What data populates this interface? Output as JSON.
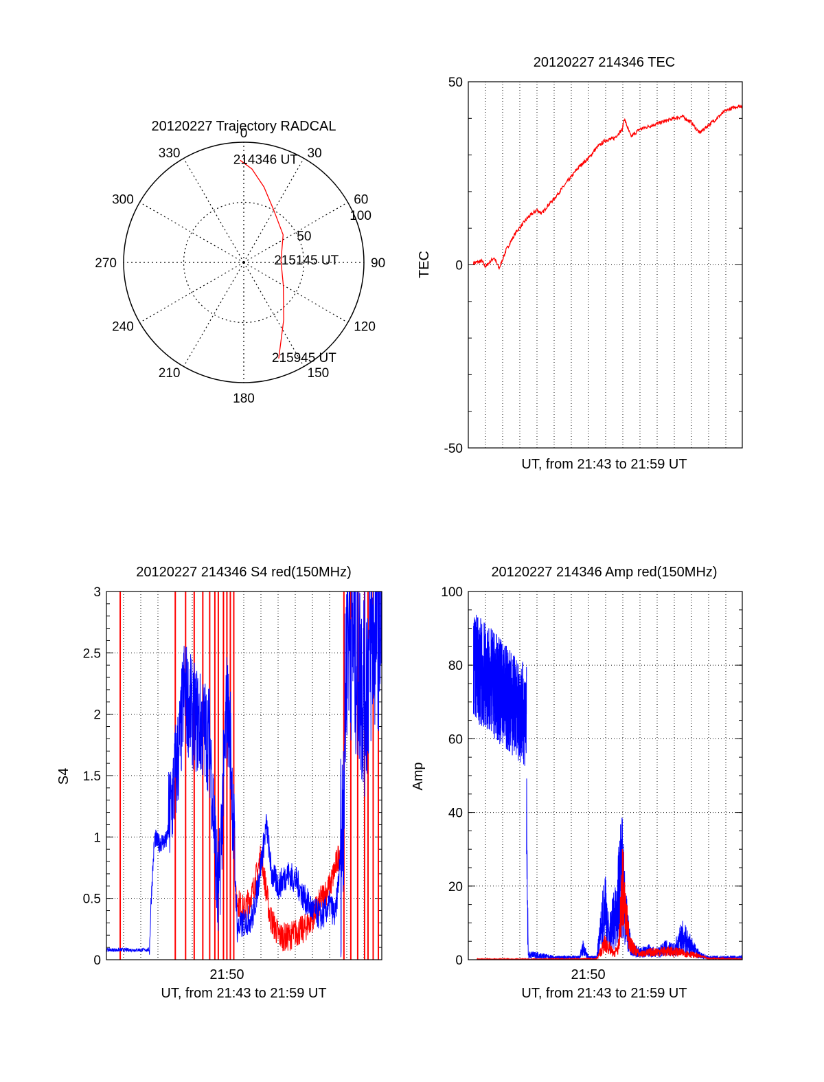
{
  "chart_data": [
    {
      "type": "polar",
      "title": "20120227 Trajectory RADCAL",
      "angle_labels": [
        "0",
        "30",
        "60",
        "90",
        "120",
        "150",
        "180",
        "210",
        "240",
        "270",
        "300",
        "330"
      ],
      "radius_labels": [
        "50",
        "100"
      ],
      "rlim": [
        0,
        100
      ],
      "direction": "clockwise-from-north",
      "grid": true,
      "series": [
        {
          "color": "#ff0000",
          "points": [
            {
              "azimuth": 358,
              "radius": 85
            },
            {
              "azimuth": 5,
              "radius": 78
            },
            {
              "azimuth": 15,
              "radius": 65
            },
            {
              "azimuth": 30,
              "radius": 50
            },
            {
              "azimuth": 55,
              "radius": 40
            },
            {
              "azimuth": 88,
              "radius": 31
            },
            {
              "azimuth": 120,
              "radius": 38
            },
            {
              "azimuth": 145,
              "radius": 58
            },
            {
              "azimuth": 160,
              "radius": 85
            }
          ]
        }
      ],
      "annotations": [
        {
          "text": "214346 UT",
          "azimuth": 358,
          "radius": 85
        },
        {
          "text": "215145 UT",
          "azimuth": 88,
          "radius": 31
        },
        {
          "text": "215945 UT",
          "azimuth": 160,
          "radius": 85
        }
      ]
    },
    {
      "type": "line",
      "title": "20120227 214346 TEC",
      "xlabel": "UT, from 21:43 to 21:59 UT",
      "ylabel": "TEC",
      "xlim": [
        0,
        16
      ],
      "ylim": [
        -50,
        50
      ],
      "yticks": [
        "50",
        "0",
        "-50"
      ],
      "grid": true,
      "series": [
        {
          "color": "#ff0000",
          "x": [
            0.3,
            0.8,
            1.0,
            1.5,
            1.8,
            2.2,
            2.8,
            3.5,
            4.0,
            4.3,
            4.6,
            5.0,
            5.5,
            6.0,
            6.5,
            7.0,
            7.5,
            8.0,
            8.5,
            9.0,
            9.1,
            9.5,
            10.0,
            11.0,
            12.0,
            12.5,
            13.0,
            13.5,
            14.0,
            14.5,
            15.0,
            15.5,
            16.0
          ],
          "y": [
            0.5,
            1.0,
            -0.5,
            2.0,
            -1.0,
            4.0,
            9.0,
            13.0,
            15.0,
            14.0,
            16.0,
            18.0,
            21.0,
            24.0,
            27.0,
            29.0,
            32.0,
            34.0,
            34.5,
            37.0,
            40.0,
            35.0,
            37.0,
            38.5,
            40.0,
            40.5,
            39.0,
            36.0,
            38.0,
            40.0,
            42.0,
            43.0,
            43.5
          ]
        }
      ]
    },
    {
      "type": "line",
      "title": "20120227 214346 S4 red(150MHz)",
      "xlabel": "UT, from 21:43 to 21:59 UT",
      "ylabel": "S4",
      "xlim": [
        0,
        16
      ],
      "xticks": [
        {
          "value": 7,
          "label": "21:50"
        }
      ],
      "ylim": [
        0,
        3
      ],
      "yticks": [
        "0",
        "0.5",
        "1",
        "1.5",
        "2",
        "2.5",
        "3"
      ],
      "grid": true,
      "red_vertical_spikes_x": [
        0.8,
        4.0,
        4.6,
        5.1,
        5.6,
        6.0,
        6.3,
        6.5,
        6.8,
        7.0,
        7.2,
        7.4,
        13.8,
        14.2,
        14.6,
        15.0,
        15.2,
        15.5,
        15.8
      ],
      "series": [
        {
          "color": "#0000ff",
          "x": [
            0.0,
            1.0,
            2.0,
            2.5,
            2.6,
            2.8,
            3.0,
            3.5,
            4.0,
            4.3,
            4.5,
            5.0,
            5.5,
            6.0,
            6.5,
            7.0,
            7.2,
            7.6,
            8.0,
            8.5,
            8.8,
            9.3,
            9.6,
            10.0,
            10.5,
            11.0,
            11.5,
            12.0,
            12.5,
            13.0,
            13.3,
            13.7,
            14.0,
            14.5,
            15.0,
            15.5,
            16.0
          ],
          "y": [
            0.08,
            0.08,
            0.08,
            0.08,
            0.5,
            1.0,
            0.95,
            0.97,
            1.5,
            1.8,
            2.2,
            2.0,
            1.9,
            1.8,
            0.45,
            2.1,
            1.8,
            0.25,
            0.3,
            0.35,
            0.6,
            1.1,
            0.7,
            0.6,
            0.7,
            0.65,
            0.5,
            0.4,
            0.35,
            0.45,
            0.35,
            1.0,
            2.8,
            2.5,
            2.2,
            2.7,
            2.8
          ]
        },
        {
          "color": "#ff0000",
          "x": [
            7.5,
            8.0,
            8.5,
            9.0,
            9.5,
            10.0,
            10.5,
            11.0,
            11.5,
            12.0,
            12.5,
            13.0,
            13.3,
            13.6
          ],
          "y": [
            0.5,
            0.4,
            0.55,
            0.85,
            0.35,
            0.2,
            0.18,
            0.22,
            0.25,
            0.35,
            0.5,
            0.6,
            0.75,
            0.9
          ]
        }
      ]
    },
    {
      "type": "line",
      "title": "20120227 214346 Amp red(150MHz)",
      "xlabel": "UT, from 21:43 to 21:59 UT",
      "ylabel": "Amp",
      "xlim": [
        0,
        16
      ],
      "xticks": [
        {
          "value": 7,
          "label": "21:50"
        }
      ],
      "ylim": [
        0,
        100
      ],
      "yticks": [
        "0",
        "20",
        "40",
        "60",
        "80",
        "100"
      ],
      "grid": true,
      "blue_band": {
        "x": [
          0.3,
          3.4
        ],
        "low_start": 65,
        "low_end": 52,
        "high_start": 95,
        "high_end": 80
      },
      "series": [
        {
          "color": "#0000ff",
          "x": [
            3.4,
            3.5,
            4.0,
            5.0,
            6.0,
            6.5,
            6.7,
            7.0,
            7.5,
            8.0,
            8.2,
            8.6,
            9.0,
            9.2,
            9.5,
            10.0,
            10.5,
            11.0,
            11.5,
            12.0,
            12.5,
            13.0,
            13.5,
            14.0,
            15.0,
            16.0
          ],
          "y": [
            52,
            2,
            2,
            1,
            1,
            1,
            5,
            1,
            1,
            25,
            10,
            20,
            40,
            18,
            5,
            3,
            4,
            3,
            5,
            4,
            10,
            6,
            2,
            1,
            1,
            1
          ]
        },
        {
          "color": "#ff0000",
          "x": [
            0.5,
            3.5,
            7.5,
            8.0,
            8.5,
            8.8,
            9.0,
            9.2,
            9.5,
            10.0,
            11.0,
            12.0,
            13.0,
            14.0,
            16.0
          ],
          "y": [
            0.2,
            0.2,
            0.3,
            6.0,
            2.0,
            5.0,
            28.0,
            15.0,
            5.0,
            2.0,
            3.0,
            3.0,
            2.0,
            0.5,
            0.2
          ]
        }
      ]
    }
  ]
}
